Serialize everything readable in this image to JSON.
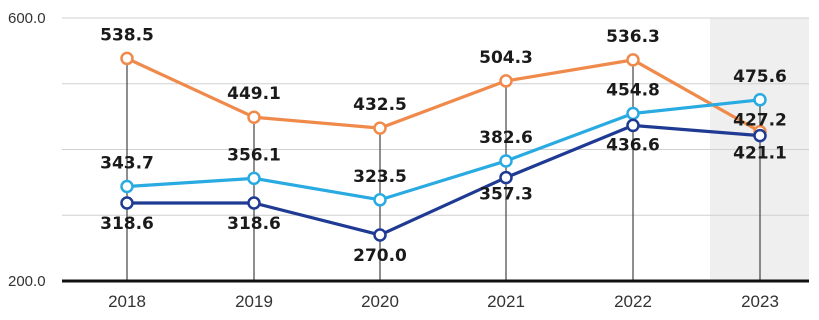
{
  "chart_data": {
    "type": "line",
    "categories": [
      "2018",
      "2019",
      "2020",
      "2021",
      "2022",
      "2023"
    ],
    "series": [
      {
        "values": [
          538.5,
          449.1,
          432.5,
          504.3,
          536.3,
          427.2
        ],
        "color": "#F08A4B"
      },
      {
        "values": [
          343.7,
          356.1,
          323.5,
          382.6,
          454.8,
          475.6
        ],
        "color": "#29ABE2"
      },
      {
        "values": [
          318.6,
          318.6,
          270.0,
          357.3,
          436.6,
          421.1
        ],
        "color": "#1F3A93"
      }
    ],
    "y_tick_labels": [
      "600.0",
      "200.0"
    ],
    "ylim": [
      200,
      600
    ],
    "grid": true,
    "highlight_category": "2023",
    "colors": {
      "grid": "#d0d0d0",
      "axis": "#111111",
      "highlight": "#efefef",
      "drop_line": "#444444"
    }
  }
}
